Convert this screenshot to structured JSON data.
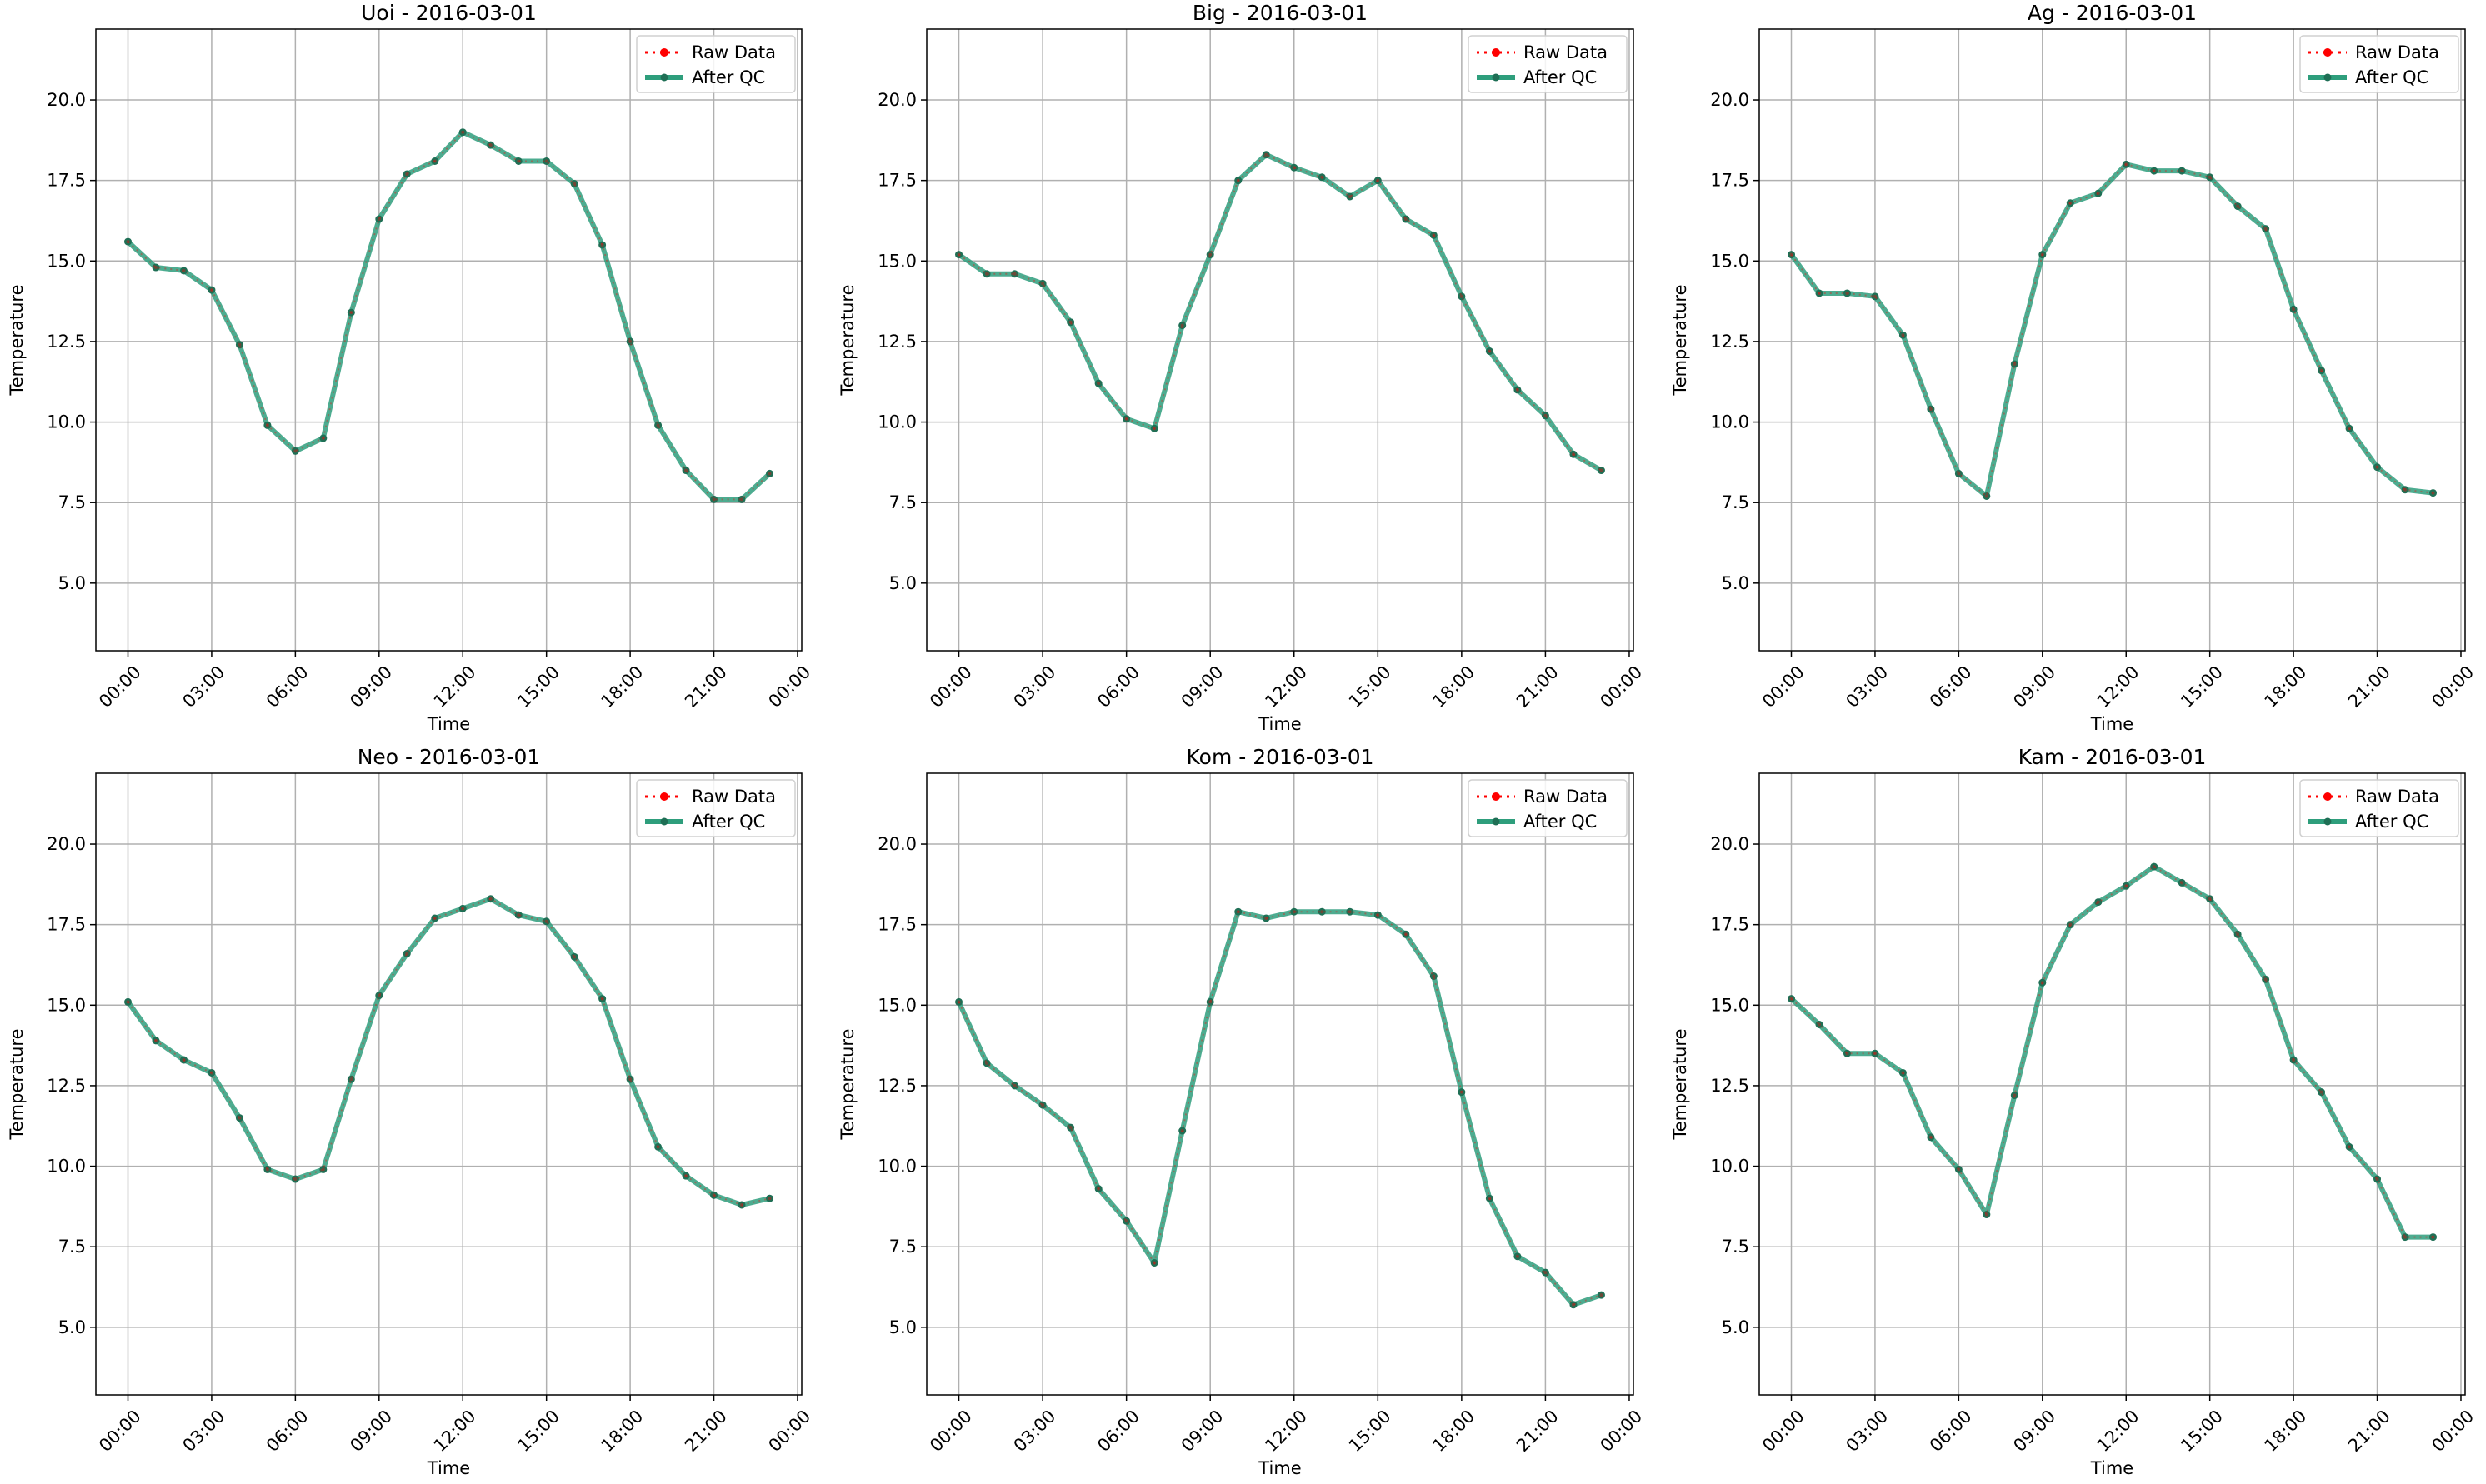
{
  "colors": {
    "raw": "#ff0000",
    "qc": "#2e9e7c",
    "qc_marker": "#1f6f55",
    "grid": "#b0b0b0",
    "axes": "#000000"
  },
  "legend": {
    "raw_label": "Raw Data",
    "qc_label": "After QC",
    "placement": "upper right"
  },
  "chart_data": [
    {
      "type": "line",
      "title": "Uoi - 2016-03-01",
      "xlabel": "Time",
      "ylabel": "Temperature",
      "x": [
        "00:00",
        "01:00",
        "02:00",
        "03:00",
        "04:00",
        "05:00",
        "06:00",
        "07:00",
        "08:00",
        "09:00",
        "10:00",
        "11:00",
        "12:00",
        "13:00",
        "14:00",
        "15:00",
        "16:00",
        "17:00",
        "18:00",
        "19:00",
        "20:00",
        "21:00",
        "22:00",
        "23:00"
      ],
      "series": [
        {
          "name": "Raw Data",
          "values": [
            15.6,
            14.8,
            14.7,
            14.1,
            12.4,
            9.9,
            9.1,
            9.5,
            13.4,
            16.3,
            17.7,
            18.1,
            19.0,
            18.6,
            18.1,
            18.1,
            17.4,
            15.5,
            12.5,
            9.9,
            8.5,
            7.6,
            7.6,
            8.4
          ]
        },
        {
          "name": "After QC",
          "values": [
            15.6,
            14.8,
            14.7,
            14.1,
            12.4,
            9.9,
            9.1,
            9.5,
            13.4,
            16.3,
            17.7,
            18.1,
            19.0,
            18.6,
            18.1,
            18.1,
            17.4,
            15.5,
            12.5,
            9.9,
            8.5,
            7.6,
            7.6,
            8.4
          ]
        }
      ],
      "xticks": [
        "00:00",
        "03:00",
        "06:00",
        "09:00",
        "12:00",
        "15:00",
        "18:00",
        "21:00",
        "00:00"
      ],
      "yticks": [
        "5.0",
        "7.5",
        "10.0",
        "12.5",
        "15.0",
        "17.5",
        "20.0"
      ],
      "ylim": [
        2.9,
        22.2
      ],
      "grid": true
    },
    {
      "type": "line",
      "title": "Big - 2016-03-01",
      "xlabel": "Time",
      "ylabel": "Temperature",
      "x": [
        "00:00",
        "01:00",
        "02:00",
        "03:00",
        "04:00",
        "05:00",
        "06:00",
        "07:00",
        "08:00",
        "09:00",
        "10:00",
        "11:00",
        "12:00",
        "13:00",
        "14:00",
        "15:00",
        "16:00",
        "17:00",
        "18:00",
        "19:00",
        "20:00",
        "21:00",
        "22:00",
        "23:00"
      ],
      "series": [
        {
          "name": "Raw Data",
          "values": [
            15.2,
            14.6,
            14.6,
            14.3,
            13.1,
            11.2,
            10.1,
            9.8,
            13.0,
            15.2,
            17.5,
            18.3,
            17.9,
            17.6,
            17.0,
            17.5,
            16.3,
            15.8,
            13.9,
            12.2,
            11.0,
            10.2,
            9.0,
            8.5
          ]
        },
        {
          "name": "After QC",
          "values": [
            15.2,
            14.6,
            14.6,
            14.3,
            13.1,
            11.2,
            10.1,
            9.8,
            13.0,
            15.2,
            17.5,
            18.3,
            17.9,
            17.6,
            17.0,
            17.5,
            16.3,
            15.8,
            13.9,
            12.2,
            11.0,
            10.2,
            9.0,
            8.5
          ]
        }
      ],
      "xticks": [
        "00:00",
        "03:00",
        "06:00",
        "09:00",
        "12:00",
        "15:00",
        "18:00",
        "21:00",
        "00:00"
      ],
      "yticks": [
        "5.0",
        "7.5",
        "10.0",
        "12.5",
        "15.0",
        "17.5",
        "20.0"
      ],
      "ylim": [
        2.9,
        22.2
      ],
      "grid": true
    },
    {
      "type": "line",
      "title": "Ag - 2016-03-01",
      "xlabel": "Time",
      "ylabel": "Temperature",
      "x": [
        "00:00",
        "01:00",
        "02:00",
        "03:00",
        "04:00",
        "05:00",
        "06:00",
        "07:00",
        "08:00",
        "09:00",
        "10:00",
        "11:00",
        "12:00",
        "13:00",
        "14:00",
        "15:00",
        "16:00",
        "17:00",
        "18:00",
        "19:00",
        "20:00",
        "21:00",
        "22:00",
        "23:00"
      ],
      "series": [
        {
          "name": "Raw Data",
          "values": [
            15.2,
            14.0,
            14.0,
            13.9,
            12.7,
            10.4,
            8.4,
            7.7,
            11.8,
            15.2,
            16.8,
            17.1,
            18.0,
            17.8,
            17.8,
            17.6,
            16.7,
            16.0,
            13.5,
            11.6,
            9.8,
            8.6,
            7.9,
            7.8
          ]
        },
        {
          "name": "After QC",
          "values": [
            15.2,
            14.0,
            14.0,
            13.9,
            12.7,
            10.4,
            8.4,
            7.7,
            11.8,
            15.2,
            16.8,
            17.1,
            18.0,
            17.8,
            17.8,
            17.6,
            16.7,
            16.0,
            13.5,
            11.6,
            9.8,
            8.6,
            7.9,
            7.8
          ]
        }
      ],
      "xticks": [
        "00:00",
        "03:00",
        "06:00",
        "09:00",
        "12:00",
        "15:00",
        "18:00",
        "21:00",
        "00:00"
      ],
      "yticks": [
        "5.0",
        "7.5",
        "10.0",
        "12.5",
        "15.0",
        "17.5",
        "20.0"
      ],
      "ylim": [
        2.9,
        22.2
      ],
      "grid": true
    },
    {
      "type": "line",
      "title": "Neo - 2016-03-01",
      "xlabel": "Time",
      "ylabel": "Temperature",
      "x": [
        "00:00",
        "01:00",
        "02:00",
        "03:00",
        "04:00",
        "05:00",
        "06:00",
        "07:00",
        "08:00",
        "09:00",
        "10:00",
        "11:00",
        "12:00",
        "13:00",
        "14:00",
        "15:00",
        "16:00",
        "17:00",
        "18:00",
        "19:00",
        "20:00",
        "21:00",
        "22:00",
        "23:00"
      ],
      "series": [
        {
          "name": "Raw Data",
          "values": [
            15.1,
            13.9,
            13.3,
            12.9,
            11.5,
            9.9,
            9.6,
            9.9,
            12.7,
            15.3,
            16.6,
            17.7,
            18.0,
            18.3,
            17.8,
            17.6,
            16.5,
            15.2,
            12.7,
            10.6,
            9.7,
            9.1,
            8.8,
            9.0
          ]
        },
        {
          "name": "After QC",
          "values": [
            15.1,
            13.9,
            13.3,
            12.9,
            11.5,
            9.9,
            9.6,
            9.9,
            12.7,
            15.3,
            16.6,
            17.7,
            18.0,
            18.3,
            17.8,
            17.6,
            16.5,
            15.2,
            12.7,
            10.6,
            9.7,
            9.1,
            8.8,
            9.0
          ]
        }
      ],
      "xticks": [
        "00:00",
        "03:00",
        "06:00",
        "09:00",
        "12:00",
        "15:00",
        "18:00",
        "21:00",
        "00:00"
      ],
      "yticks": [
        "5.0",
        "7.5",
        "10.0",
        "12.5",
        "15.0",
        "17.5",
        "20.0"
      ],
      "ylim": [
        2.9,
        22.2
      ],
      "grid": true
    },
    {
      "type": "line",
      "title": "Kom - 2016-03-01",
      "xlabel": "Time",
      "ylabel": "Temperature",
      "x": [
        "00:00",
        "01:00",
        "02:00",
        "03:00",
        "04:00",
        "05:00",
        "06:00",
        "07:00",
        "08:00",
        "09:00",
        "10:00",
        "11:00",
        "12:00",
        "13:00",
        "14:00",
        "15:00",
        "16:00",
        "17:00",
        "18:00",
        "19:00",
        "20:00",
        "21:00",
        "22:00",
        "23:00"
      ],
      "series": [
        {
          "name": "Raw Data",
          "values": [
            15.1,
            13.2,
            12.5,
            11.9,
            11.2,
            9.3,
            8.3,
            7.0,
            11.1,
            15.1,
            17.9,
            17.7,
            17.9,
            17.9,
            17.9,
            17.8,
            17.2,
            15.9,
            12.3,
            9.0,
            7.2,
            6.7,
            5.7,
            6.0
          ]
        },
        {
          "name": "After QC",
          "values": [
            15.1,
            13.2,
            12.5,
            11.9,
            11.2,
            9.3,
            8.3,
            7.0,
            11.1,
            15.1,
            17.9,
            17.7,
            17.9,
            17.9,
            17.9,
            17.8,
            17.2,
            15.9,
            12.3,
            9.0,
            7.2,
            6.7,
            5.7,
            6.0
          ]
        }
      ],
      "xticks": [
        "00:00",
        "03:00",
        "06:00",
        "09:00",
        "12:00",
        "15:00",
        "18:00",
        "21:00",
        "00:00"
      ],
      "yticks": [
        "5.0",
        "7.5",
        "10.0",
        "12.5",
        "15.0",
        "17.5",
        "20.0"
      ],
      "ylim": [
        2.9,
        22.2
      ],
      "grid": true
    },
    {
      "type": "line",
      "title": "Kam - 2016-03-01",
      "xlabel": "Time",
      "ylabel": "Temperature",
      "x": [
        "00:00",
        "01:00",
        "02:00",
        "03:00",
        "04:00",
        "05:00",
        "06:00",
        "07:00",
        "08:00",
        "09:00",
        "10:00",
        "11:00",
        "12:00",
        "13:00",
        "14:00",
        "15:00",
        "16:00",
        "17:00",
        "18:00",
        "19:00",
        "20:00",
        "21:00",
        "22:00",
        "23:00"
      ],
      "series": [
        {
          "name": "Raw Data",
          "values": [
            15.2,
            14.4,
            13.5,
            13.5,
            12.9,
            10.9,
            9.9,
            8.5,
            12.2,
            15.7,
            17.5,
            18.2,
            18.7,
            19.3,
            18.8,
            18.3,
            17.2,
            15.8,
            13.3,
            12.3,
            10.6,
            9.6,
            7.8,
            7.8
          ]
        },
        {
          "name": "After QC",
          "values": [
            15.2,
            14.4,
            13.5,
            13.5,
            12.9,
            10.9,
            9.9,
            8.5,
            12.2,
            15.7,
            17.5,
            18.2,
            18.7,
            19.3,
            18.8,
            18.3,
            17.2,
            15.8,
            13.3,
            12.3,
            10.6,
            9.6,
            7.8,
            7.8
          ]
        }
      ],
      "xticks": [
        "00:00",
        "03:00",
        "06:00",
        "09:00",
        "12:00",
        "15:00",
        "18:00",
        "21:00",
        "00:00"
      ],
      "yticks": [
        "5.0",
        "7.5",
        "10.0",
        "12.5",
        "15.0",
        "17.5",
        "20.0"
      ],
      "ylim": [
        2.9,
        22.2
      ],
      "grid": true
    }
  ]
}
